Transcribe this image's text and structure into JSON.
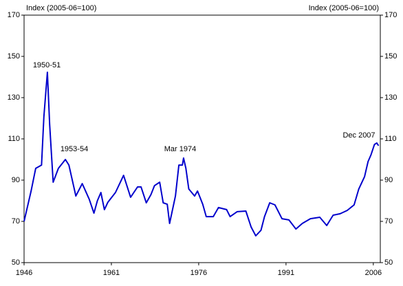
{
  "chart_data": {
    "type": "line",
    "y_label": "Index (2005-06=100)",
    "y2_label": "Index (2005-06=100)",
    "annotations": [
      "1950-51",
      "1953-54",
      "Mar 1974",
      "Dec 2007"
    ],
    "x": [
      1946,
      1947.2,
      1948,
      1949,
      1949.4,
      1950,
      1950.4,
      1951,
      1951.9,
      1953.1,
      1953.7,
      1954.9,
      1956,
      1957.2,
      1958,
      1958.6,
      1959.2,
      1959.8,
      1960.4,
      1961.7,
      1963.1,
      1964.3,
      1965.5,
      1966.1,
      1967,
      1967.8,
      1968.4,
      1969.3,
      1969.9,
      1970.6,
      1971,
      1972,
      1972.6,
      1973.2,
      1973.4,
      1973.8,
      1974.3,
      1975.3,
      1975.8,
      1976.7,
      1977.3,
      1978.5,
      1979.4,
      1980.8,
      1981.4,
      1982.6,
      1984.1,
      1985,
      1985.8,
      1986.7,
      1987.3,
      1988.2,
      1989.1,
      1990.3,
      1991.5,
      1992.7,
      1993.8,
      1995.2,
      1996.8,
      1998,
      1999.1,
      2000.3,
      2001.5,
      2002.7,
      2003.5,
      2004.5,
      2005.1,
      2005.6,
      2006.2,
      2006.6,
      2006.9
    ],
    "series": [
      {
        "color": "#0000cc",
        "values": [
          70,
          84.7,
          95.7,
          97.3,
          120.7,
          142.3,
          117,
          89,
          95.7,
          100,
          97.3,
          82.3,
          88.3,
          80.7,
          74,
          80,
          84,
          75.7,
          79.3,
          84,
          92.3,
          81.7,
          86.7,
          86.7,
          79,
          83,
          87.3,
          89,
          79,
          78.3,
          69,
          82.3,
          97.3,
          97.3,
          100.7,
          95.7,
          85.7,
          82.3,
          84.7,
          78.3,
          72.3,
          72.3,
          76.7,
          75.7,
          72.3,
          74.7,
          75,
          67.3,
          63,
          65.7,
          72.3,
          79,
          78,
          71.3,
          70.7,
          66.3,
          69,
          71.3,
          72,
          68,
          73,
          73.7,
          75.3,
          78,
          85.7,
          91.7,
          99,
          102.3,
          107.3,
          108,
          106.7
        ]
      }
    ],
    "xlim": [
      1946,
      2007.2
    ],
    "xticks": [
      1946,
      1961,
      1976,
      1991,
      2006
    ],
    "ylim": [
      50,
      170
    ],
    "yticks": [
      50,
      70,
      90,
      110,
      130,
      150,
      170
    ],
    "y2lim": [
      50,
      170
    ],
    "y2ticks": [
      50,
      70,
      90,
      110,
      130,
      150,
      170
    ]
  }
}
